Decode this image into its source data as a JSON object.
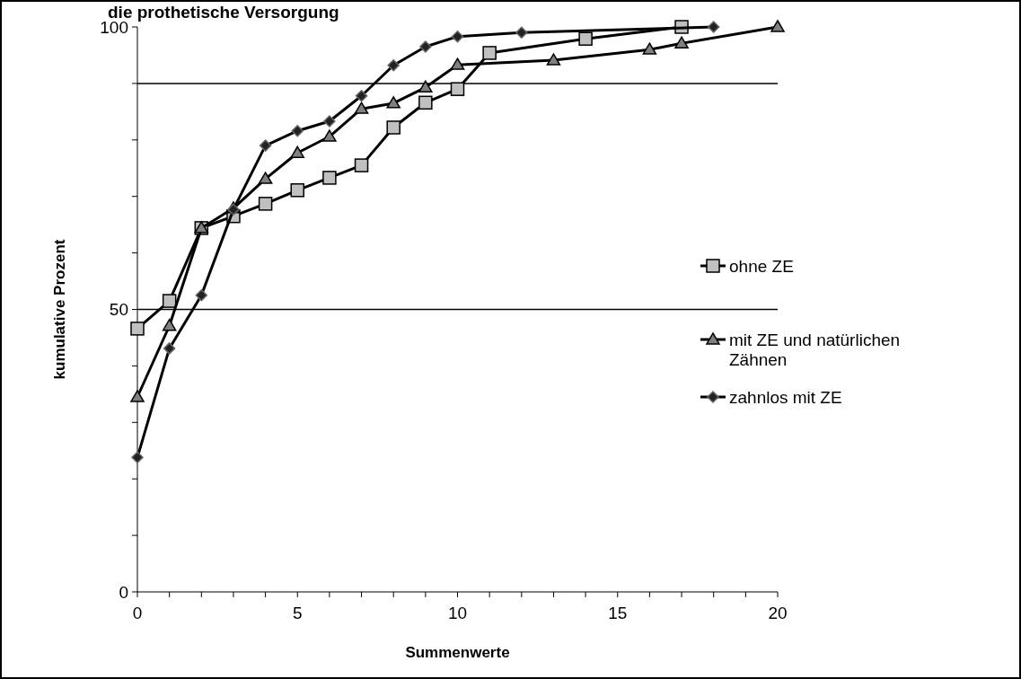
{
  "chart_data": {
    "type": "line",
    "title": "die prothetische Versorgung",
    "xlabel": "Summenwerte",
    "ylabel": "kumulative Prozent",
    "xlim": [
      0,
      20
    ],
    "xticks": [
      0,
      {
        "value": 1,
        "label": null
      },
      {
        "value": 2,
        "label": null
      },
      {
        "value": 3,
        "label": null
      },
      {
        "value": 4,
        "label": null
      },
      5,
      {
        "value": 6,
        "label": null
      },
      {
        "value": 7,
        "label": null
      },
      {
        "value": 8,
        "label": null
      },
      {
        "value": 9,
        "label": null
      },
      10,
      {
        "value": 11,
        "label": null
      },
      {
        "value": 12,
        "label": null
      },
      {
        "value": 13,
        "label": null
      },
      {
        "value": 14,
        "label": null
      },
      15,
      {
        "value": 16,
        "label": null
      },
      {
        "value": 17,
        "label": null
      },
      {
        "value": 18,
        "label": null
      },
      {
        "value": 19,
        "label": null
      },
      20
    ],
    "ylim": [
      0,
      100
    ],
    "yticks": [
      0,
      {
        "value": 10,
        "label": null
      },
      {
        "value": 20,
        "label": null
      },
      {
        "value": 30,
        "label": null
      },
      {
        "value": 40,
        "label": null
      },
      50,
      {
        "value": 60,
        "label": null
      },
      {
        "value": 70,
        "label": null
      },
      {
        "value": 80,
        "label": null
      },
      {
        "value": 90,
        "label": null
      },
      100
    ],
    "legend": "right",
    "line_style": "solid",
    "ref_lines": [
      {
        "axis": "y",
        "value": 90,
        "color": "#000000"
      },
      {
        "axis": "y",
        "value": 50,
        "color": "#000000"
      }
    ],
    "series": [
      {
        "name": "ohne ZE",
        "color": "#c0c0c0",
        "marker": "square",
        "x": [
          0,
          1,
          2,
          3,
          4,
          5,
          6,
          7,
          8,
          9,
          10,
          11,
          14,
          17
        ],
        "values": [
          46.6,
          51.5,
          64.4,
          66.5,
          68.7,
          71.1,
          73.3,
          75.5,
          82.2,
          86.6,
          89,
          95.4,
          97.9,
          100
        ]
      },
      {
        "name": "mit ZE und natürlichen Zähnen",
        "color": "#808080",
        "marker": "triangle",
        "x": [
          0,
          1,
          2,
          3,
          4,
          5,
          6,
          7,
          8,
          9,
          10,
          13,
          16,
          17,
          20
        ],
        "values": [
          34.5,
          47.1,
          64.4,
          67.9,
          73.1,
          77.7,
          80.6,
          85.5,
          86.5,
          89.3,
          93.3,
          94.1,
          96,
          97.1,
          100
        ]
      },
      {
        "name": "zahnlos mit ZE",
        "color": "#222222",
        "marker": "diamond",
        "x": [
          0,
          1,
          2,
          3,
          4,
          5,
          6,
          7,
          8,
          9,
          10,
          12,
          18
        ],
        "values": [
          23.8,
          43.1,
          52.5,
          67.7,
          79,
          81.6,
          83.3,
          87.8,
          93.2,
          96.5,
          98.3,
          99,
          100
        ]
      }
    ]
  }
}
